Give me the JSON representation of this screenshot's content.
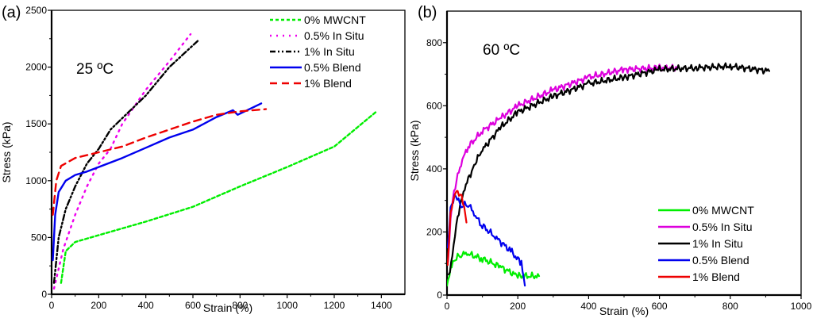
{
  "chart_data": [
    {
      "type": "line",
      "panel_label": "(a)",
      "annotation": "25 ºC",
      "title": "",
      "xlabel": "Strain (%)",
      "ylabel": "Stress (kPa)",
      "xlim": [
        0,
        1500
      ],
      "ylim": [
        0,
        2500
      ],
      "xticks": [
        0,
        200,
        400,
        600,
        800,
        1000,
        1200,
        1400
      ],
      "yticks": [
        0,
        500,
        1000,
        1500,
        2000,
        2500
      ],
      "grid": false,
      "legend_position": "top-right",
      "series": [
        {
          "name": "0% MWCNT",
          "color": "#00ee00",
          "style": "short-dash",
          "x": [
            40,
            60,
            100,
            200,
            400,
            600,
            800,
            1000,
            1200,
            1380
          ],
          "y": [
            100,
            380,
            460,
            520,
            640,
            770,
            950,
            1120,
            1300,
            1610
          ]
        },
        {
          "name": "0.5% In Situ",
          "color": "#ee00ee",
          "style": "dot",
          "x": [
            10,
            50,
            100,
            150,
            200,
            250,
            300,
            400,
            500,
            590
          ],
          "y": [
            50,
            400,
            700,
            950,
            1150,
            1280,
            1500,
            1800,
            2050,
            2290
          ]
        },
        {
          "name": "1% In Situ",
          "color": "#000000",
          "style": "dash-dot-dot",
          "x": [
            10,
            30,
            60,
            100,
            150,
            200,
            250,
            300,
            400,
            500,
            620
          ],
          "y": [
            100,
            500,
            750,
            950,
            1150,
            1280,
            1450,
            1550,
            1750,
            2000,
            2230
          ]
        },
        {
          "name": "0.5% Blend",
          "color": "#0000ee",
          "style": "solid",
          "x": [
            5,
            15,
            30,
            60,
            100,
            150,
            200,
            300,
            400,
            500,
            600,
            700,
            770,
            790,
            890
          ],
          "y": [
            300,
            700,
            900,
            1000,
            1050,
            1080,
            1120,
            1200,
            1290,
            1380,
            1450,
            1560,
            1620,
            1580,
            1680
          ]
        },
        {
          "name": "1% Blend",
          "color": "#ee0000",
          "style": "dash",
          "x": [
            5,
            20,
            40,
            100,
            200,
            300,
            400,
            500,
            600,
            700,
            800,
            910
          ],
          "y": [
            700,
            1000,
            1130,
            1200,
            1250,
            1300,
            1380,
            1450,
            1520,
            1580,
            1610,
            1630
          ]
        }
      ]
    },
    {
      "type": "line",
      "panel_label": "(b)",
      "annotation": "60 ºC",
      "title": "",
      "xlabel": "Strain (%)",
      "ylabel": "Stress (kPa)",
      "xlim": [
        0,
        1000
      ],
      "ylim": [
        0,
        900
      ],
      "xticks": [
        0,
        200,
        400,
        600,
        800,
        1000
      ],
      "yticks": [
        0,
        200,
        400,
        600,
        800
      ],
      "grid": false,
      "legend_position": "bottom-right",
      "series": [
        {
          "name": "0% MWCNT",
          "color": "#00ee00",
          "style": "solid",
          "x": [
            0,
            10,
            20,
            40,
            60,
            100,
            150,
            200,
            260
          ],
          "y": [
            30,
            90,
            110,
            130,
            130,
            115,
            90,
            60,
            60
          ]
        },
        {
          "name": "0.5% In Situ",
          "color": "#dd00dd",
          "style": "solid",
          "x": [
            3,
            10,
            20,
            40,
            60,
            100,
            150,
            200,
            300,
            400,
            500,
            600,
            650
          ],
          "y": [
            100,
            250,
            330,
            420,
            470,
            520,
            560,
            600,
            650,
            690,
            715,
            720,
            720
          ]
        },
        {
          "name": "1% In Situ",
          "color": "#000000",
          "style": "solid",
          "x": [
            5,
            15,
            30,
            50,
            80,
            100,
            150,
            200,
            300,
            400,
            500,
            600,
            700,
            800,
            910
          ],
          "y": [
            60,
            130,
            250,
            340,
            420,
            460,
            530,
            580,
            630,
            670,
            690,
            715,
            720,
            725,
            710
          ]
        },
        {
          "name": "0.5% Blend",
          "color": "#0000ee",
          "style": "solid",
          "x": [
            2,
            10,
            25,
            40,
            60,
            80,
            100,
            140,
            180,
            210,
            220
          ],
          "y": [
            150,
            280,
            320,
            280,
            290,
            250,
            220,
            180,
            140,
            100,
            30
          ]
        },
        {
          "name": "1% Blend",
          "color": "#ee0000",
          "style": "solid",
          "x": [
            2,
            10,
            20,
            30,
            45,
            55
          ],
          "y": [
            100,
            260,
            320,
            330,
            300,
            230
          ]
        }
      ]
    }
  ]
}
